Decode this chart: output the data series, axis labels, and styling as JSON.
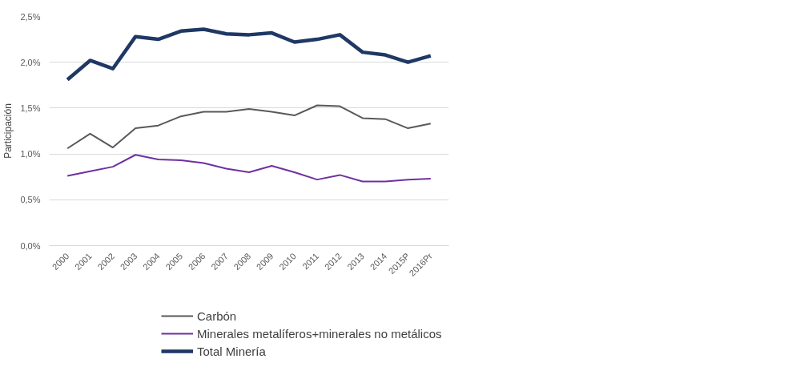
{
  "chart_data": {
    "type": "line",
    "ylabel": "Participación",
    "categories": [
      "2000",
      "2001",
      "2002",
      "2003",
      "2004",
      "2005",
      "2006",
      "2007",
      "2008",
      "2009",
      "2010",
      "2011",
      "2012",
      "2013",
      "2014",
      "2015P",
      "2016Pr"
    ],
    "series": [
      {
        "name": "Carbón",
        "color": "#595959",
        "values": [
          1.06,
          1.22,
          1.07,
          1.28,
          1.31,
          1.41,
          1.46,
          1.46,
          1.49,
          1.46,
          1.42,
          1.53,
          1.52,
          1.39,
          1.38,
          1.28,
          1.33
        ]
      },
      {
        "name": "Minerales metalíferos+minerales no metálicos",
        "color": "#7030a0",
        "values": [
          0.76,
          0.81,
          0.86,
          0.99,
          0.94,
          0.93,
          0.9,
          0.84,
          0.8,
          0.87,
          0.8,
          0.72,
          0.77,
          0.7,
          0.7,
          0.72,
          0.73
        ]
      },
      {
        "name": "Total Minería",
        "color": "#1f3864",
        "values": [
          1.81,
          2.02,
          1.93,
          2.28,
          2.25,
          2.34,
          2.36,
          2.31,
          2.3,
          2.32,
          2.22,
          2.25,
          2.3,
          2.11,
          2.08,
          2.0,
          2.07
        ]
      }
    ],
    "ylim": [
      0,
      2.5
    ],
    "yticks": [
      {
        "value": 0,
        "label": "0,0%"
      },
      {
        "value": 0.5,
        "label": "0,5%"
      },
      {
        "value": 1.0,
        "label": "1,0%"
      },
      {
        "value": 1.5,
        "label": "1,5%"
      },
      {
        "value": 2.0,
        "label": "2,0%"
      },
      {
        "value": 2.5,
        "label": "2,5%"
      }
    ],
    "grid": "y",
    "legend": "bottom",
    "marker": "none",
    "line_style": "solid"
  }
}
